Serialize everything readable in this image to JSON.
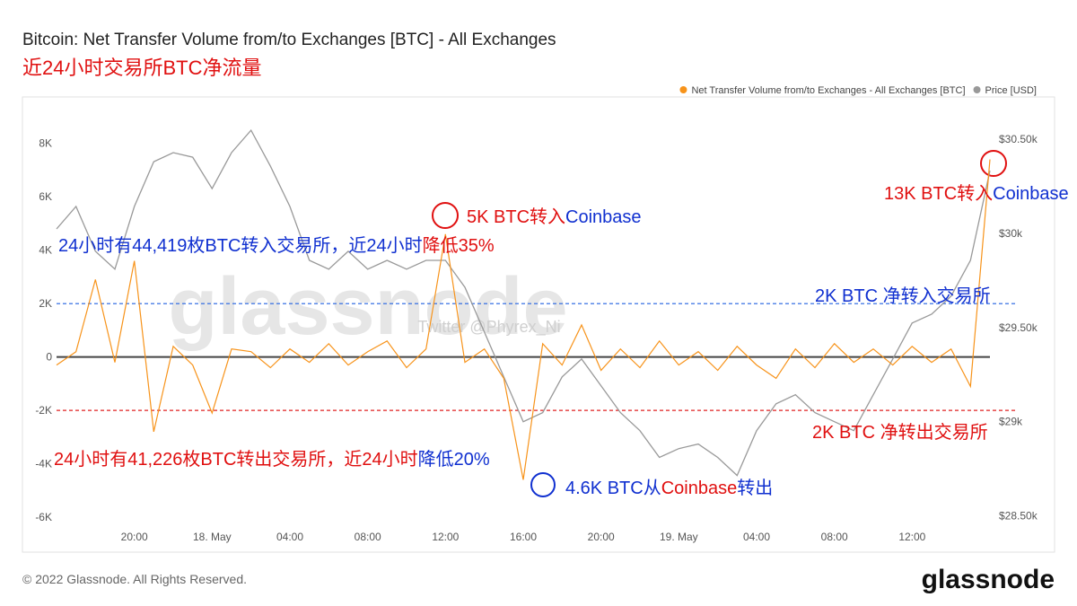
{
  "chart_data": {
    "type": "line",
    "title": "Bitcoin: Net Transfer Volume from/to Exchanges [BTC] - All Exchanges",
    "subtitle": "近24小时交易所BTC净流量",
    "watermark": "glassnode",
    "watermark_note": "Twitter @Phyrex_Ni",
    "footer": "© 2022 Glassnode. All Rights Reserved.",
    "logo": "glassnode",
    "categories": [
      null,
      null,
      null,
      null,
      "20:00",
      null,
      null,
      null,
      "18. May",
      null,
      null,
      null,
      "04:00",
      null,
      null,
      null,
      "08:00",
      null,
      null,
      null,
      "12:00",
      null,
      null,
      null,
      "16:00",
      null,
      null,
      null,
      "20:00",
      null,
      null,
      null,
      "19. May",
      null,
      null,
      null,
      "04:00",
      null,
      null,
      null,
      "08:00",
      null,
      null,
      null,
      "12:00",
      null,
      null,
      null,
      null
    ],
    "series": [
      {
        "name": "Net Transfer Volume from/to Exchanges - All Exchanges [BTC]",
        "color": "#f7931a",
        "axis": "y",
        "values": [
          -300,
          200,
          2900,
          -200,
          3600,
          -2800,
          400,
          -300,
          -2100,
          300,
          200,
          -400,
          300,
          -200,
          500,
          -300,
          200,
          600,
          -400,
          300,
          4600,
          -200,
          300,
          -800,
          -4600,
          500,
          -300,
          1200,
          -500,
          300,
          -400,
          600,
          -300,
          200,
          -500,
          400,
          -300,
          -800,
          300,
          -400,
          500,
          -200,
          300,
          -300,
          400,
          -200,
          300,
          -1100,
          7400
        ]
      },
      {
        "name": "Price [USD]",
        "color": "#999999",
        "axis": "y2",
        "values": [
          30024,
          30143,
          29905,
          29810,
          30143,
          30381,
          30429,
          30405,
          30238,
          30429,
          30548,
          30357,
          30143,
          29857,
          29810,
          29905,
          29810,
          29857,
          29810,
          29857,
          29857,
          29714,
          29476,
          29238,
          29000,
          29048,
          29238,
          29333,
          29190,
          29048,
          28952,
          28810,
          28857,
          28881,
          28810,
          28714,
          28952,
          29095,
          29143,
          29048,
          29000,
          28952,
          29143,
          29333,
          29524,
          29571,
          29667,
          29857,
          30333
        ]
      }
    ],
    "ylim": [
      -6300,
      9000
    ],
    "yticks": [
      {
        "value": -6000,
        "label": "-6K"
      },
      {
        "value": -4000,
        "label": "-4K"
      },
      {
        "value": -2000,
        "label": "-2K"
      },
      0,
      {
        "value": 2000,
        "label": "2K"
      },
      {
        "value": 4000,
        "label": "4K"
      },
      {
        "value": 6000,
        "label": "6K"
      },
      {
        "value": 8000,
        "label": "8K"
      }
    ],
    "y2lim": [
      28450,
      30620
    ],
    "y2ticks": [
      {
        "value": 28500,
        "label": "$28.50k"
      },
      {
        "value": 29000,
        "label": "$29k"
      },
      {
        "value": 29500,
        "label": "$29.50k"
      },
      {
        "value": 30000,
        "label": "$30k"
      },
      {
        "value": 30500,
        "label": "$30.50k"
      }
    ],
    "reference_lines": [
      {
        "value": 2000,
        "color": "#2060e0"
      },
      {
        "value": -2000,
        "color": "#e02020"
      }
    ],
    "legend": "top-right",
    "annotations": [
      {
        "parts": [
          {
            "text": "5K BTC转入",
            "color": "#e01010"
          },
          {
            "text": "Coinbase",
            "color": "#1030d0"
          }
        ]
      },
      {
        "parts": [
          {
            "text": "13K BTC转入",
            "color": "#e01010"
          },
          {
            "text": "Coinbase",
            "color": "#1030d0"
          }
        ]
      },
      {
        "parts": [
          {
            "text": "24小时有44,419枚BTC转入交易所，近24小时",
            "color": "#1030d0"
          },
          {
            "text": "降低35%",
            "color": "#e01010"
          }
        ]
      },
      {
        "parts": [
          {
            "text": "2K BTC 净转入交易所",
            "color": "#1030d0"
          }
        ]
      },
      {
        "parts": [
          {
            "text": "2K BTC 净转出交易所",
            "color": "#e01010"
          }
        ]
      },
      {
        "parts": [
          {
            "text": "24小时有41,226枚BTC转出交易所，近24小时",
            "color": "#e01010"
          },
          {
            "text": "降低20%",
            "color": "#1030d0"
          }
        ]
      },
      {
        "parts": [
          {
            "text": "4.6K BTC从",
            "color": "#1030d0"
          },
          {
            "text": "Coinbase",
            "color": "#e01010"
          },
          {
            "text": "转出",
            "color": "#1030d0"
          }
        ]
      }
    ]
  }
}
